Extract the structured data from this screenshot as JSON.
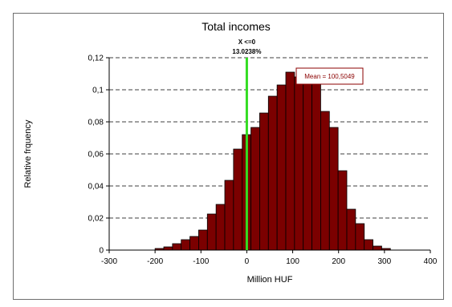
{
  "chart_data": {
    "type": "bar",
    "title": "Total incomes",
    "xlabel": "Million HUF",
    "ylabel": "Relative frquency",
    "xlim": [
      -300,
      400
    ],
    "ylim": [
      0,
      0.12
    ],
    "x_ticks": [
      -300,
      -200,
      -100,
      0,
      100,
      200,
      300,
      400
    ],
    "x_tick_labels": [
      "-300",
      "-200",
      "-100",
      "0",
      "100",
      "200",
      "300",
      "400"
    ],
    "y_ticks": [
      0,
      0.02,
      0.04,
      0.06,
      0.08,
      0.1,
      0.12
    ],
    "y_tick_labels": [
      "0",
      "0,02",
      "0,04",
      "0,06",
      "0,08",
      "0,1",
      "0,12"
    ],
    "grid": "horizontal dashed",
    "bin_width": 19,
    "bins": [
      {
        "x": -200,
        "y": 0.001
      },
      {
        "x": -181,
        "y": 0.002
      },
      {
        "x": -162,
        "y": 0.004
      },
      {
        "x": -143,
        "y": 0.0065
      },
      {
        "x": -124,
        "y": 0.0085
      },
      {
        "x": -105,
        "y": 0.0125
      },
      {
        "x": -86,
        "y": 0.0225
      },
      {
        "x": -67,
        "y": 0.0285
      },
      {
        "x": -48,
        "y": 0.0435
      },
      {
        "x": -29,
        "y": 0.063
      },
      {
        "x": -10,
        "y": 0.072
      },
      {
        "x": 9,
        "y": 0.0765
      },
      {
        "x": 28,
        "y": 0.0855
      },
      {
        "x": 47,
        "y": 0.096
      },
      {
        "x": 66,
        "y": 0.103
      },
      {
        "x": 85,
        "y": 0.111
      },
      {
        "x": 104,
        "y": 0.108
      },
      {
        "x": 123,
        "y": 0.11
      },
      {
        "x": 142,
        "y": 0.1045
      },
      {
        "x": 161,
        "y": 0.0865
      },
      {
        "x": 180,
        "y": 0.0765
      },
      {
        "x": 199,
        "y": 0.0495
      },
      {
        "x": 218,
        "y": 0.0255
      },
      {
        "x": 237,
        "y": 0.0165
      },
      {
        "x": 256,
        "y": 0.0065
      },
      {
        "x": 275,
        "y": 0.0025
      },
      {
        "x": 294,
        "y": 0.001
      }
    ],
    "marker": {
      "x": 0,
      "label_line1": "X <=0",
      "label_line2": "13.0238%",
      "color": "#33dd22"
    },
    "mean": {
      "value": 100.5049,
      "label": "Mean = 100,5049"
    },
    "bar_color": "#7b0000"
  }
}
